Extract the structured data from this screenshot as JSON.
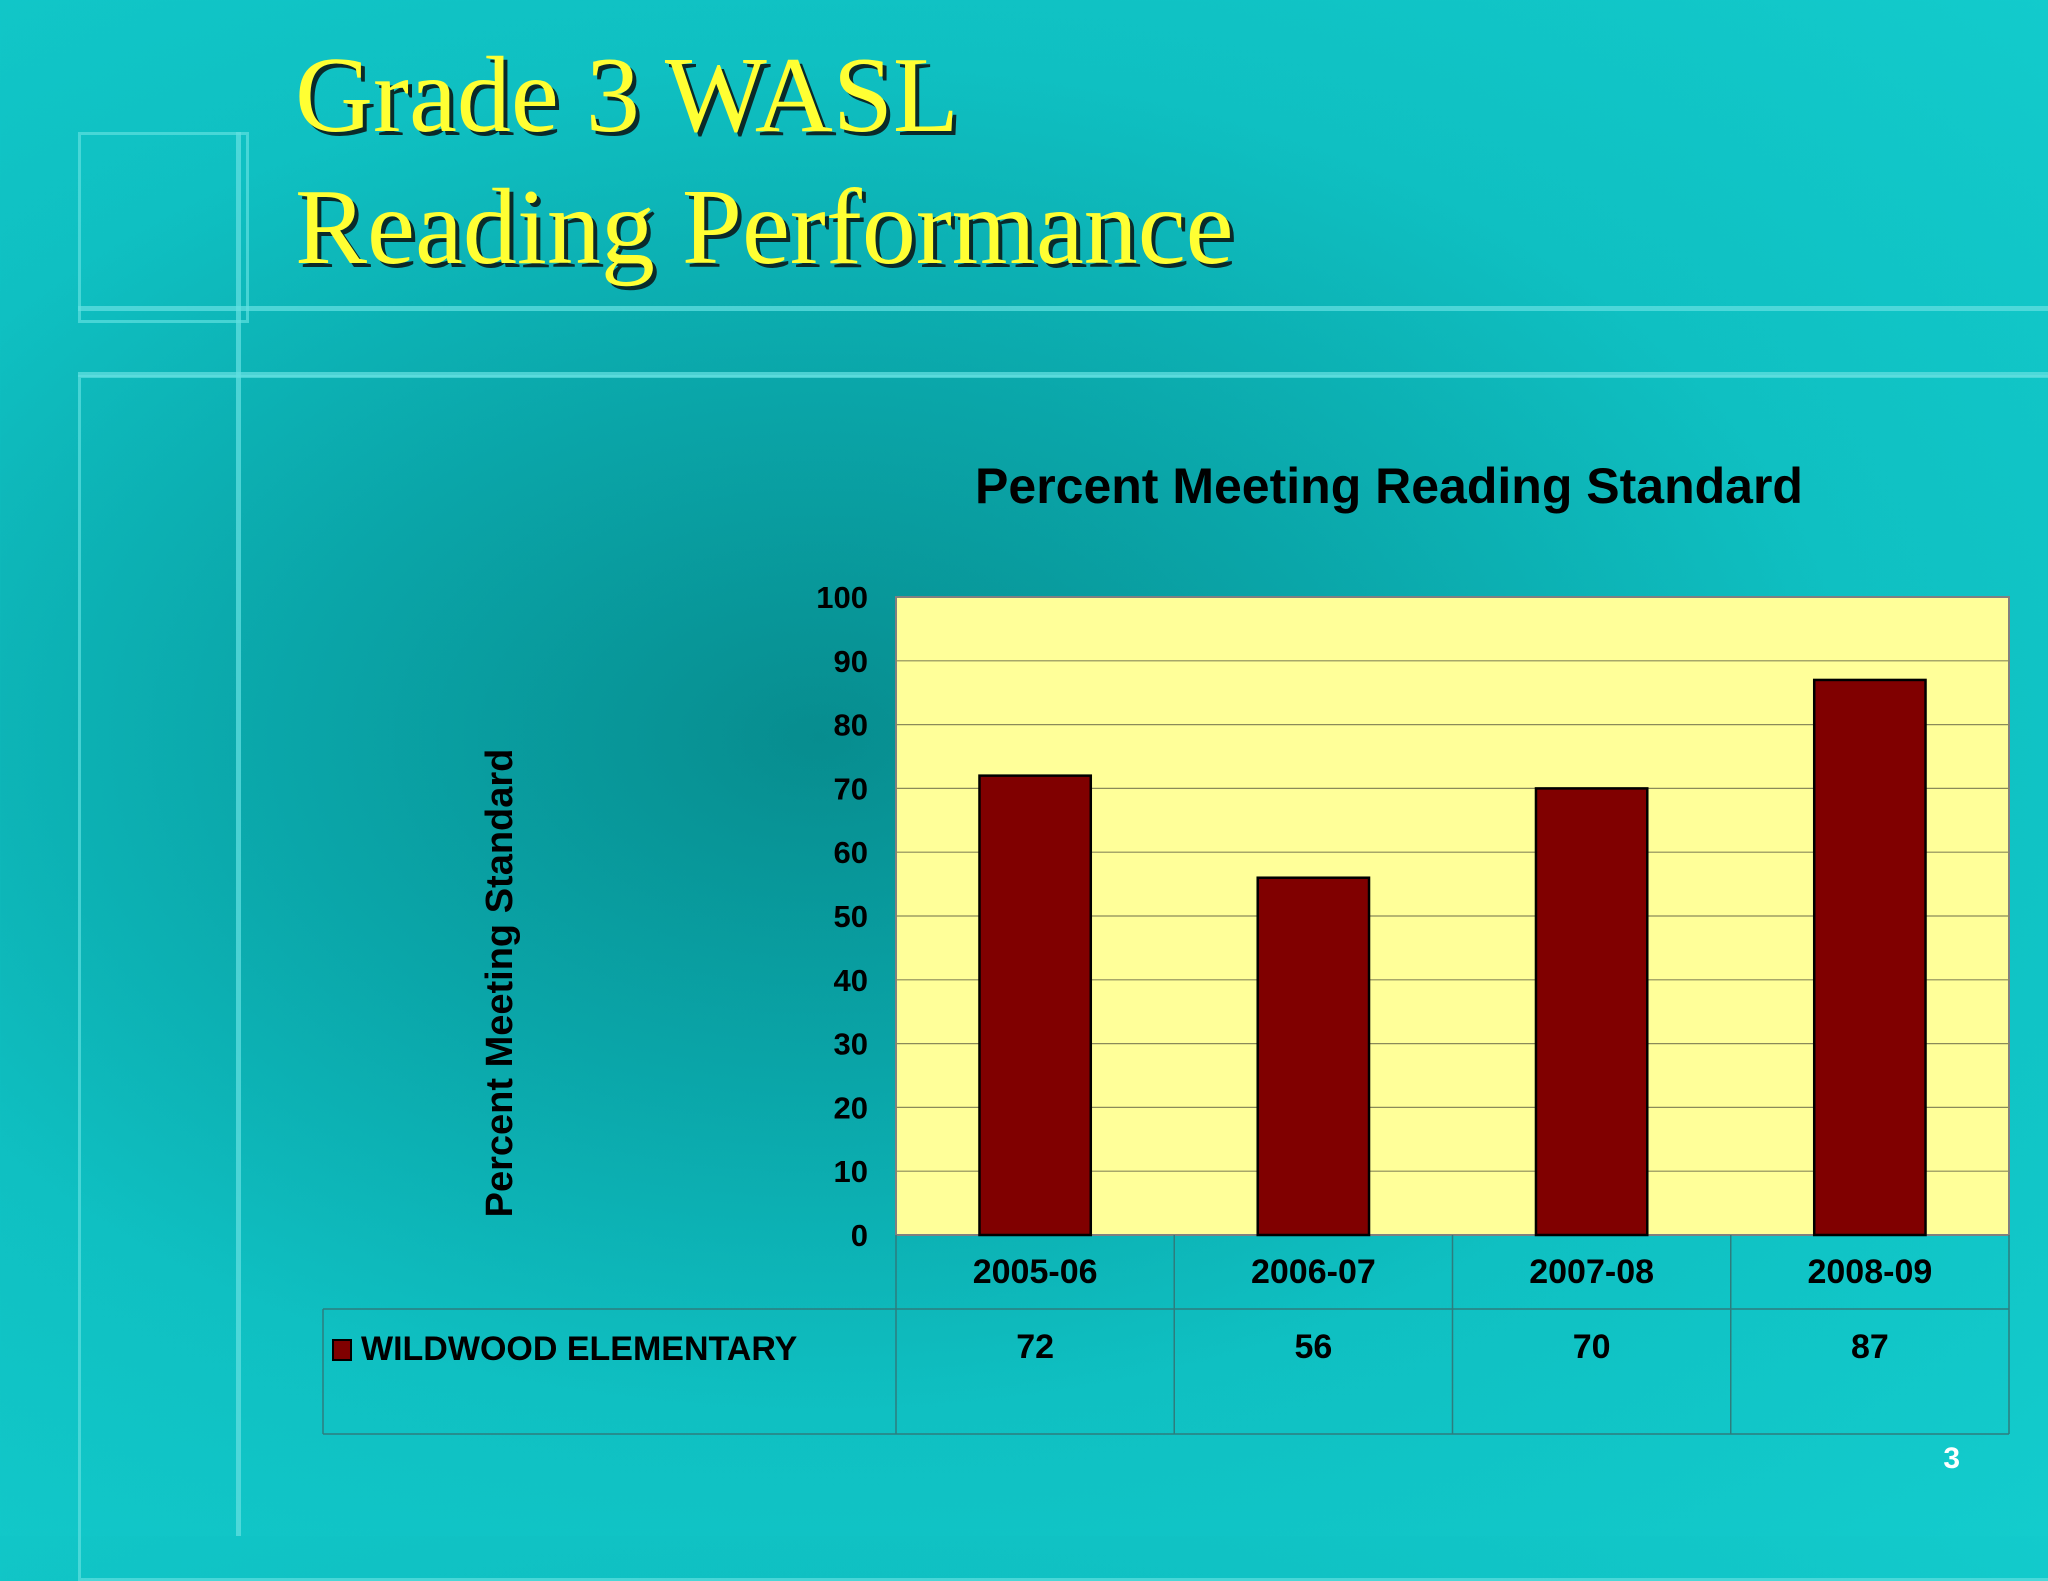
{
  "slide": {
    "title_line1": "Grade 3 WASL",
    "title_line2": "Reading Performance",
    "page_number": "3"
  },
  "colors": {
    "bar": "#800000",
    "plot_bg": "#ffff99",
    "title": "#ffff33"
  },
  "chart_data": {
    "type": "bar",
    "title": "Percent Meeting Reading Standard",
    "ylabel": "Percent Meeting Standard",
    "xlabel": "",
    "ylim": [
      0,
      100
    ],
    "yticks": [
      0,
      10,
      20,
      30,
      40,
      50,
      60,
      70,
      80,
      90,
      100
    ],
    "categories": [
      "2005-06",
      "2006-07",
      "2007-08",
      "2008-09"
    ],
    "series": [
      {
        "name": "WILDWOOD ELEMENTARY",
        "values": [
          72,
          56,
          70,
          87
        ]
      }
    ],
    "grid": true,
    "legend": "data-table-below"
  }
}
